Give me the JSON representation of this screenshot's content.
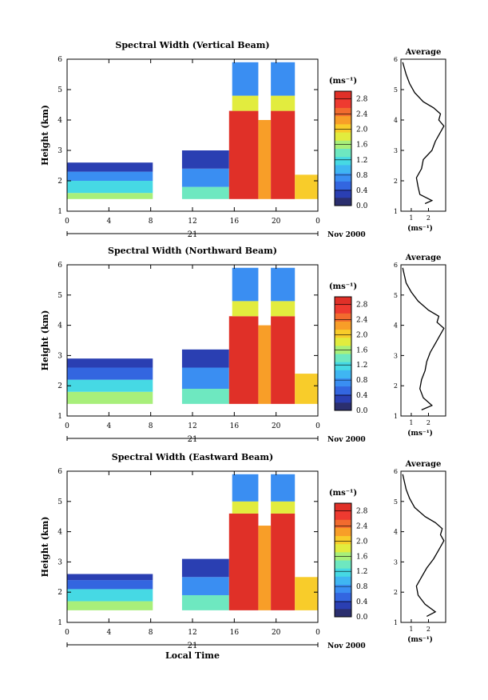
{
  "chart_data": [
    {
      "type": "heatmap",
      "title": "Spectral Width (Vertical Beam)",
      "ylabel": "Height (km)",
      "x_ticks": [
        "0",
        "4",
        "8",
        "12",
        "16",
        "20",
        "0"
      ],
      "xlim": [
        0,
        24
      ],
      "y_ticks": [
        "1",
        "2",
        "3",
        "4",
        "5",
        "6"
      ],
      "ylim": [
        1,
        6
      ],
      "date_label": "21",
      "date_suffix": "Nov 2000",
      "colorbar": {
        "unit": "(ms⁻¹)",
        "ticks": [
          "0.0",
          "0.4",
          "0.8",
          "1.2",
          "1.6",
          "2.0",
          "2.4",
          "2.8"
        ],
        "range": [
          0.0,
          3.0
        ]
      },
      "cells": [
        {
          "t0": 0,
          "t1": 8.2,
          "h0": 1.4,
          "h1": 1.6,
          "v": 1.6
        },
        {
          "t0": 0,
          "t1": 8.2,
          "h0": 1.6,
          "h1": 2.0,
          "v": 1.2
        },
        {
          "t0": 0,
          "t1": 8.2,
          "h0": 2.0,
          "h1": 2.3,
          "v": 0.8
        },
        {
          "t0": 0,
          "t1": 8.2,
          "h0": 2.3,
          "h1": 2.6,
          "v": 0.4
        },
        {
          "t0": 11.0,
          "t1": 15.5,
          "h0": 1.4,
          "h1": 1.8,
          "v": 1.4
        },
        {
          "t0": 11.0,
          "t1": 15.5,
          "h0": 1.8,
          "h1": 2.4,
          "v": 0.7
        },
        {
          "t0": 11.0,
          "t1": 15.5,
          "h0": 2.4,
          "h1": 3.0,
          "v": 0.3
        },
        {
          "t0": 15.5,
          "t1": 18.3,
          "h0": 1.4,
          "h1": 4.3,
          "v": 2.9
        },
        {
          "t0": 18.3,
          "t1": 19.5,
          "h0": 1.4,
          "h1": 4.0,
          "v": 2.2
        },
        {
          "t0": 19.5,
          "t1": 21.8,
          "h0": 1.4,
          "h1": 4.3,
          "v": 2.9
        },
        {
          "t0": 21.8,
          "t1": 24.0,
          "h0": 1.4,
          "h1": 2.2,
          "v": 2.0
        },
        {
          "t0": 15.8,
          "t1": 18.3,
          "h0": 4.3,
          "h1": 4.8,
          "v": 1.8
        },
        {
          "t0": 15.8,
          "t1": 18.3,
          "h0": 4.8,
          "h1": 5.9,
          "v": 0.8
        },
        {
          "t0": 19.5,
          "t1": 21.8,
          "h0": 4.3,
          "h1": 4.8,
          "v": 1.8
        },
        {
          "t0": 19.5,
          "t1": 21.8,
          "h0": 4.8,
          "h1": 5.9,
          "v": 0.8
        }
      ],
      "average_panel": {
        "title": "Average",
        "xlabel": "(ms⁻¹)",
        "x_ticks": [
          "1",
          "2"
        ],
        "xlim": [
          0.4,
          3.0
        ],
        "y_ticks": [
          "1",
          "2",
          "3",
          "4",
          "5",
          "6"
        ],
        "ylim": [
          1,
          6
        ],
        "profile": [
          {
            "h": 1.25,
            "x": 1.8
          },
          {
            "h": 1.35,
            "x": 2.2
          },
          {
            "h": 1.55,
            "x": 1.5
          },
          {
            "h": 1.8,
            "x": 1.4
          },
          {
            "h": 2.1,
            "x": 1.3
          },
          {
            "h": 2.4,
            "x": 1.6
          },
          {
            "h": 2.7,
            "x": 1.7
          },
          {
            "h": 3.0,
            "x": 2.2
          },
          {
            "h": 3.3,
            "x": 2.4
          },
          {
            "h": 3.6,
            "x": 2.7
          },
          {
            "h": 3.8,
            "x": 2.9
          },
          {
            "h": 4.0,
            "x": 2.6
          },
          {
            "h": 4.2,
            "x": 2.7
          },
          {
            "h": 4.4,
            "x": 2.3
          },
          {
            "h": 4.6,
            "x": 1.7
          },
          {
            "h": 4.9,
            "x": 1.2
          },
          {
            "h": 5.2,
            "x": 0.9
          },
          {
            "h": 5.5,
            "x": 0.7
          },
          {
            "h": 5.9,
            "x": 0.5
          }
        ]
      }
    },
    {
      "type": "heatmap",
      "title": "Spectral Width (Northward Beam)",
      "ylabel": "Height (km)",
      "x_ticks": [
        "0",
        "4",
        "8",
        "12",
        "16",
        "20",
        "0"
      ],
      "xlim": [
        0,
        24
      ],
      "y_ticks": [
        "1",
        "2",
        "3",
        "4",
        "5",
        "6"
      ],
      "ylim": [
        1,
        6
      ],
      "date_label": "21",
      "date_suffix": "Nov 2000",
      "colorbar": {
        "unit": "(ms⁻¹)",
        "ticks": [
          "0.0",
          "0.4",
          "0.8",
          "1.2",
          "1.6",
          "2.0",
          "2.4",
          "2.8"
        ],
        "range": [
          0.0,
          3.0
        ]
      },
      "cells": [
        {
          "t0": 0,
          "t1": 8.2,
          "h0": 1.4,
          "h1": 1.8,
          "v": 1.7
        },
        {
          "t0": 0,
          "t1": 8.2,
          "h0": 1.8,
          "h1": 2.2,
          "v": 1.1
        },
        {
          "t0": 0,
          "t1": 8.2,
          "h0": 2.2,
          "h1": 2.6,
          "v": 0.6
        },
        {
          "t0": 0,
          "t1": 8.2,
          "h0": 2.6,
          "h1": 2.9,
          "v": 0.4
        },
        {
          "t0": 11.0,
          "t1": 15.5,
          "h0": 1.4,
          "h1": 1.9,
          "v": 1.4
        },
        {
          "t0": 11.0,
          "t1": 15.5,
          "h0": 1.9,
          "h1": 2.6,
          "v": 0.8
        },
        {
          "t0": 11.0,
          "t1": 15.5,
          "h0": 2.6,
          "h1": 3.2,
          "v": 0.4
        },
        {
          "t0": 15.5,
          "t1": 18.3,
          "h0": 1.4,
          "h1": 4.3,
          "v": 2.9
        },
        {
          "t0": 18.3,
          "t1": 19.5,
          "h0": 1.4,
          "h1": 4.0,
          "v": 2.2
        },
        {
          "t0": 19.5,
          "t1": 21.8,
          "h0": 1.4,
          "h1": 4.3,
          "v": 2.9
        },
        {
          "t0": 21.8,
          "t1": 24.0,
          "h0": 1.4,
          "h1": 2.4,
          "v": 2.0
        },
        {
          "t0": 15.8,
          "t1": 18.3,
          "h0": 4.3,
          "h1": 4.8,
          "v": 1.8
        },
        {
          "t0": 15.8,
          "t1": 18.3,
          "h0": 4.8,
          "h1": 5.9,
          "v": 0.8
        },
        {
          "t0": 19.5,
          "t1": 21.8,
          "h0": 4.3,
          "h1": 4.8,
          "v": 1.8
        },
        {
          "t0": 19.5,
          "t1": 21.8,
          "h0": 4.8,
          "h1": 5.9,
          "v": 0.8
        }
      ],
      "average_panel": {
        "title": "Average",
        "xlabel": "(ms⁻¹)",
        "x_ticks": [
          "1",
          "2"
        ],
        "xlim": [
          0.4,
          3.0
        ],
        "y_ticks": [
          "1",
          "2",
          "3",
          "4",
          "5",
          "6"
        ],
        "ylim": [
          1,
          6
        ],
        "profile": [
          {
            "h": 1.2,
            "x": 1.6
          },
          {
            "h": 1.35,
            "x": 2.2
          },
          {
            "h": 1.6,
            "x": 1.7
          },
          {
            "h": 1.9,
            "x": 1.5
          },
          {
            "h": 2.2,
            "x": 1.6
          },
          {
            "h": 2.5,
            "x": 1.8
          },
          {
            "h": 2.8,
            "x": 1.9
          },
          {
            "h": 3.1,
            "x": 2.1
          },
          {
            "h": 3.4,
            "x": 2.4
          },
          {
            "h": 3.7,
            "x": 2.7
          },
          {
            "h": 3.9,
            "x": 2.9
          },
          {
            "h": 4.1,
            "x": 2.5
          },
          {
            "h": 4.3,
            "x": 2.6
          },
          {
            "h": 4.5,
            "x": 2.0
          },
          {
            "h": 4.8,
            "x": 1.4
          },
          {
            "h": 5.1,
            "x": 1.0
          },
          {
            "h": 5.4,
            "x": 0.7
          },
          {
            "h": 5.9,
            "x": 0.5
          }
        ]
      }
    },
    {
      "type": "heatmap",
      "title": "Spectral Width (Eastward Beam)",
      "ylabel": "Height (km)",
      "x_ticks": [
        "0",
        "4",
        "8",
        "12",
        "16",
        "20",
        "0"
      ],
      "xlim": [
        0,
        24
      ],
      "y_ticks": [
        "1",
        "2",
        "3",
        "4",
        "5",
        "6"
      ],
      "ylim": [
        1,
        6
      ],
      "date_label": "21",
      "date_suffix": "Nov 2000",
      "xlabel": "Local Time",
      "colorbar": {
        "unit": "(ms⁻¹)",
        "ticks": [
          "0.0",
          "0.4",
          "0.8",
          "1.2",
          "1.6",
          "2.0",
          "2.4",
          "2.8"
        ],
        "range": [
          0.0,
          3.0
        ]
      },
      "cells": [
        {
          "t0": 0,
          "t1": 8.2,
          "h0": 1.4,
          "h1": 1.7,
          "v": 1.7
        },
        {
          "t0": 0,
          "t1": 8.2,
          "h0": 1.7,
          "h1": 2.1,
          "v": 1.1
        },
        {
          "t0": 0,
          "t1": 8.2,
          "h0": 2.1,
          "h1": 2.4,
          "v": 0.6
        },
        {
          "t0": 0,
          "t1": 8.2,
          "h0": 2.4,
          "h1": 2.6,
          "v": 0.4
        },
        {
          "t0": 11.0,
          "t1": 15.5,
          "h0": 1.4,
          "h1": 1.9,
          "v": 1.4
        },
        {
          "t0": 11.0,
          "t1": 15.5,
          "h0": 1.9,
          "h1": 2.5,
          "v": 0.8
        },
        {
          "t0": 11.0,
          "t1": 15.5,
          "h0": 2.5,
          "h1": 3.1,
          "v": 0.4
        },
        {
          "t0": 15.5,
          "t1": 18.3,
          "h0": 1.4,
          "h1": 4.6,
          "v": 2.9
        },
        {
          "t0": 18.3,
          "t1": 19.5,
          "h0": 1.4,
          "h1": 4.2,
          "v": 2.2
        },
        {
          "t0": 19.5,
          "t1": 21.8,
          "h0": 1.4,
          "h1": 4.6,
          "v": 2.9
        },
        {
          "t0": 21.8,
          "t1": 24.0,
          "h0": 1.4,
          "h1": 2.5,
          "v": 2.0
        },
        {
          "t0": 15.8,
          "t1": 18.3,
          "h0": 4.6,
          "h1": 5.0,
          "v": 1.8
        },
        {
          "t0": 15.8,
          "t1": 18.3,
          "h0": 5.0,
          "h1": 5.9,
          "v": 0.8
        },
        {
          "t0": 19.5,
          "t1": 21.8,
          "h0": 4.6,
          "h1": 5.0,
          "v": 1.8
        },
        {
          "t0": 19.5,
          "t1": 21.8,
          "h0": 5.0,
          "h1": 5.9,
          "v": 0.8
        }
      ],
      "average_panel": {
        "title": "Average",
        "xlabel": "(ms⁻¹)",
        "x_ticks": [
          "1",
          "2"
        ],
        "xlim": [
          0.4,
          3.0
        ],
        "y_ticks": [
          "1",
          "2",
          "3",
          "4",
          "5",
          "6"
        ],
        "ylim": [
          1,
          6
        ],
        "profile": [
          {
            "h": 1.2,
            "x": 1.9
          },
          {
            "h": 1.35,
            "x": 2.4
          },
          {
            "h": 1.6,
            "x": 1.8
          },
          {
            "h": 1.9,
            "x": 1.4
          },
          {
            "h": 2.2,
            "x": 1.3
          },
          {
            "h": 2.5,
            "x": 1.6
          },
          {
            "h": 2.8,
            "x": 1.9
          },
          {
            "h": 3.1,
            "x": 2.3
          },
          {
            "h": 3.4,
            "x": 2.6
          },
          {
            "h": 3.7,
            "x": 2.9
          },
          {
            "h": 3.9,
            "x": 2.7
          },
          {
            "h": 4.1,
            "x": 2.8
          },
          {
            "h": 4.3,
            "x": 2.4
          },
          {
            "h": 4.5,
            "x": 1.8
          },
          {
            "h": 4.8,
            "x": 1.2
          },
          {
            "h": 5.1,
            "x": 0.9
          },
          {
            "h": 5.4,
            "x": 0.7
          },
          {
            "h": 5.9,
            "x": 0.5
          }
        ]
      }
    }
  ]
}
